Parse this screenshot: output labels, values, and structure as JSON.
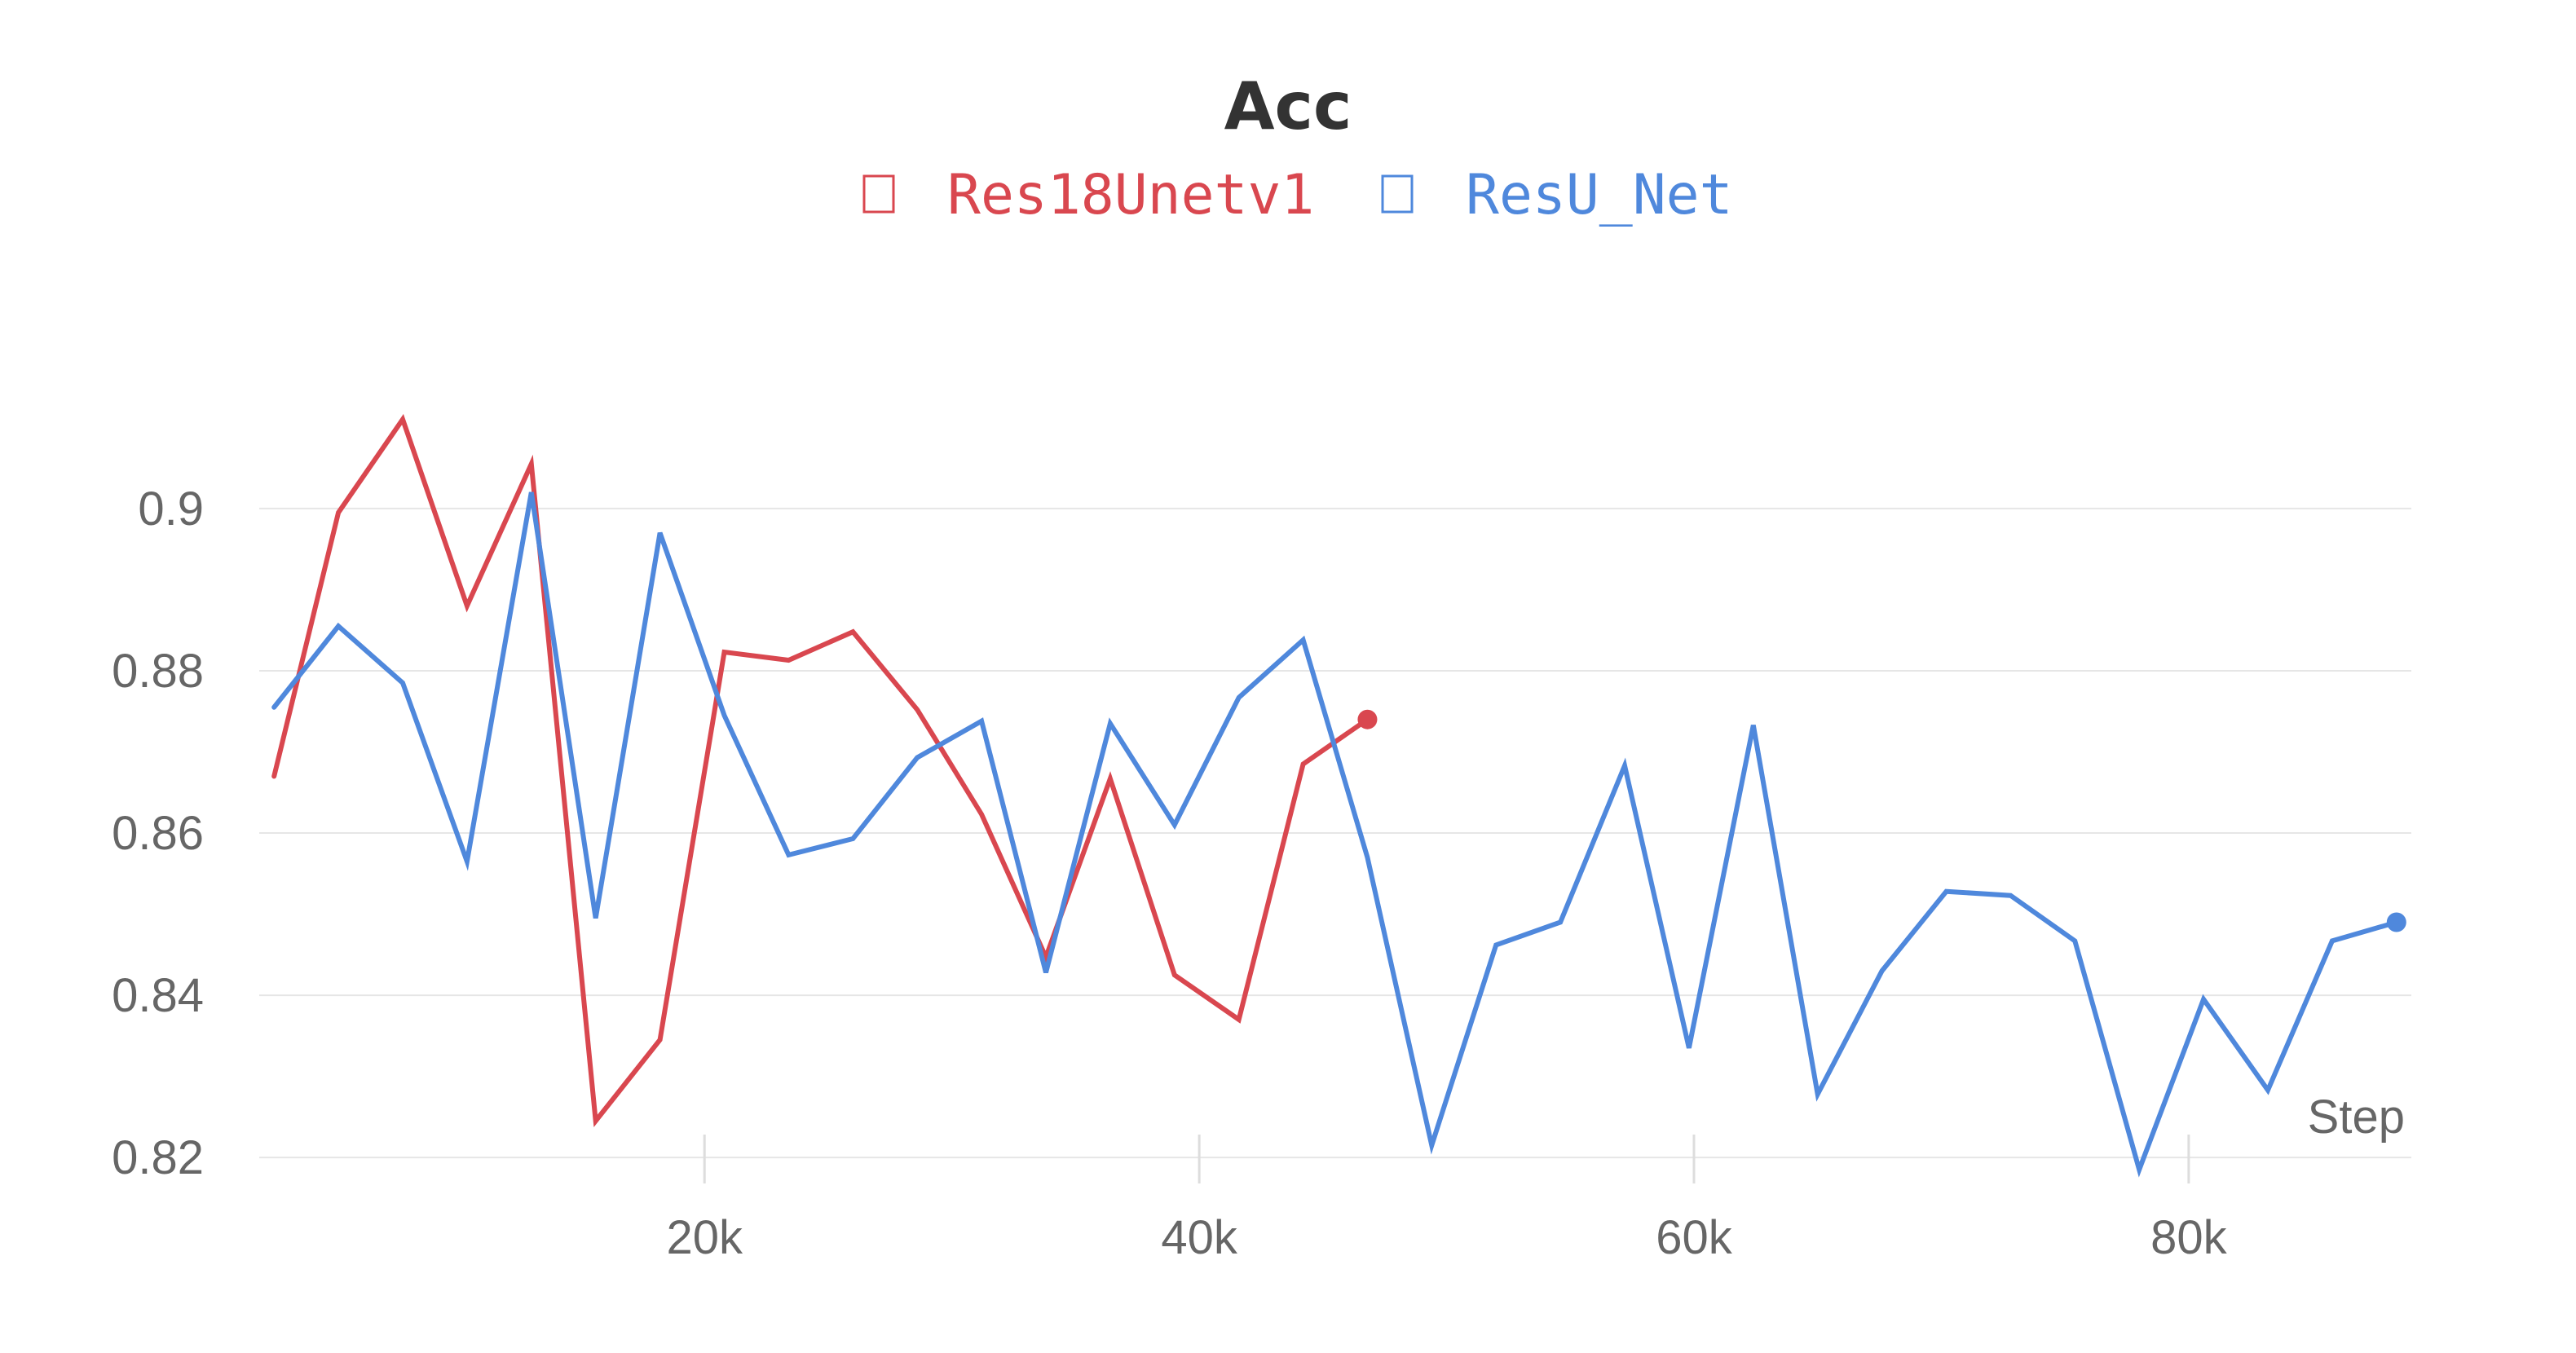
{
  "chart_data": {
    "type": "line",
    "title": "Acc",
    "xlabel": "Step",
    "ylabel": "",
    "xlim": [
      2000,
      89000
    ],
    "ylim": [
      0.8175,
      0.9225
    ],
    "x_ticks": [
      20000,
      40000,
      60000,
      80000
    ],
    "x_tick_labels": [
      "20k",
      "40k",
      "60k",
      "80k"
    ],
    "y_ticks": [
      0.82,
      0.84,
      0.86,
      0.88,
      0.9
    ],
    "y_tick_labels": [
      "0.82",
      "0.84",
      "0.86",
      "0.88",
      "0.9"
    ],
    "grid": true,
    "legend_position": "top-center",
    "series": [
      {
        "name": "Res18Unetv1",
        "color": "#d9474f",
        "x": [
          2600,
          5200,
          7800,
          10400,
          13000,
          15600,
          18200,
          20800,
          23400,
          26000,
          28600,
          31200,
          33800,
          36400,
          39000,
          41600,
          44200,
          46800
        ],
        "y": [
          0.867,
          0.8995,
          0.911,
          0.888,
          0.9055,
          0.8245,
          0.8345,
          0.8823,
          0.8813,
          0.8848,
          0.8752,
          0.8623,
          0.8447,
          0.8667,
          0.8425,
          0.837,
          0.8685,
          0.874
        ]
      },
      {
        "name": "ResU_Net",
        "color": "#4f88dc",
        "x": [
          2600,
          5200,
          7800,
          10400,
          13000,
          15600,
          18200,
          20800,
          23400,
          26000,
          28600,
          31200,
          33800,
          36400,
          39000,
          41600,
          44200,
          46800,
          49400,
          52000,
          54600,
          57200,
          59800,
          62400,
          65000,
          67600,
          70200,
          72800,
          75400,
          78000,
          80600,
          83200,
          85800,
          88400
        ],
        "y": [
          0.8755,
          0.8855,
          0.8785,
          0.8565,
          0.902,
          0.8495,
          0.897,
          0.8745,
          0.8573,
          0.8593,
          0.8693,
          0.8738,
          0.8428,
          0.8735,
          0.861,
          0.8767,
          0.8838,
          0.857,
          0.8215,
          0.8462,
          0.849,
          0.8683,
          0.8335,
          0.8733,
          0.8278,
          0.843,
          0.8528,
          0.8523,
          0.8467,
          0.8185,
          0.8395,
          0.8283,
          0.8467,
          0.849
        ]
      }
    ]
  }
}
